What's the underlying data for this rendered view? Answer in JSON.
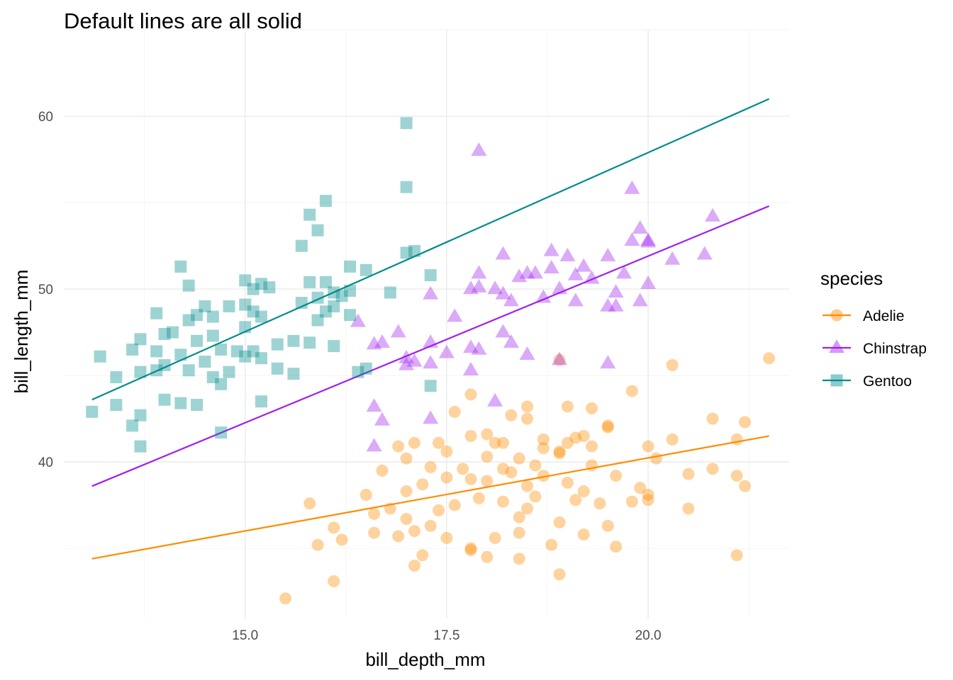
{
  "chart_data": {
    "type": "scatter",
    "title": "Default lines are all solid",
    "xlabel": "bill_depth_mm",
    "ylabel": "bill_length_mm",
    "xlim": [
      12.75,
      21.75
    ],
    "ylim": [
      30.95,
      65
    ],
    "x_ticks": [
      15.0,
      17.5,
      20.0
    ],
    "x_tick_labels": [
      "15.0",
      "17.5",
      "20.0"
    ],
    "y_ticks": [
      40,
      50,
      60
    ],
    "y_tick_labels": [
      "40",
      "50",
      "60"
    ],
    "x_minor": [
      13.75,
      16.25,
      18.75,
      21.25
    ],
    "y_minor": [
      35,
      45,
      55,
      65
    ],
    "grid": true,
    "legend": {
      "title": "species",
      "placement": "right"
    },
    "series": [
      {
        "name": "Adelie",
        "color": "#ff8c00",
        "marker": "circle",
        "trend": {
          "x": [
            13.1,
            21.5
          ],
          "y": [
            34.4,
            41.5
          ]
        },
        "points": [
          [
            15.5,
            32.1
          ],
          [
            16.1,
            33.1
          ],
          [
            17.1,
            34.0
          ],
          [
            17.2,
            34.6
          ],
          [
            17.8,
            34.9
          ],
          [
            18.0,
            34.5
          ],
          [
            18.4,
            34.4
          ],
          [
            18.9,
            33.5
          ],
          [
            21.1,
            34.6
          ],
          [
            15.9,
            35.2
          ],
          [
            16.1,
            36.2
          ],
          [
            16.2,
            35.5
          ],
          [
            16.6,
            35.9
          ],
          [
            16.9,
            35.7
          ],
          [
            17.1,
            36.0
          ],
          [
            17.3,
            36.3
          ],
          [
            17.5,
            35.6
          ],
          [
            17.8,
            35.0
          ],
          [
            18.1,
            35.6
          ],
          [
            18.4,
            35.9
          ],
          [
            18.8,
            35.2
          ],
          [
            19.2,
            35.8
          ],
          [
            19.5,
            36.3
          ],
          [
            19.6,
            35.1
          ],
          [
            15.8,
            37.6
          ],
          [
            16.6,
            37.0
          ],
          [
            16.8,
            37.3
          ],
          [
            17.0,
            36.7
          ],
          [
            17.4,
            37.2
          ],
          [
            17.6,
            37.5
          ],
          [
            17.9,
            37.9
          ],
          [
            18.2,
            37.7
          ],
          [
            18.4,
            36.8
          ],
          [
            18.5,
            37.3
          ],
          [
            18.6,
            38.0
          ],
          [
            18.9,
            36.5
          ],
          [
            19.1,
            37.8
          ],
          [
            19.4,
            37.6
          ],
          [
            19.8,
            37.7
          ],
          [
            20.0,
            38.1
          ],
          [
            20.5,
            37.3
          ],
          [
            16.5,
            38.1
          ],
          [
            17.0,
            38.3
          ],
          [
            17.2,
            38.7
          ],
          [
            17.5,
            39.1
          ],
          [
            17.8,
            39.0
          ],
          [
            18.0,
            38.9
          ],
          [
            18.3,
            39.4
          ],
          [
            18.5,
            38.6
          ],
          [
            18.7,
            39.2
          ],
          [
            19.0,
            38.8
          ],
          [
            19.2,
            38.3
          ],
          [
            19.3,
            39.8
          ],
          [
            19.6,
            39.2
          ],
          [
            19.9,
            38.5
          ],
          [
            20.0,
            37.8
          ],
          [
            16.7,
            39.5
          ],
          [
            17.0,
            40.2
          ],
          [
            17.3,
            39.7
          ],
          [
            17.5,
            40.6
          ],
          [
            17.7,
            39.6
          ],
          [
            18.0,
            40.3
          ],
          [
            18.2,
            39.6
          ],
          [
            18.4,
            40.2
          ],
          [
            18.6,
            39.8
          ],
          [
            18.9,
            40.5
          ],
          [
            19.0,
            41.1
          ],
          [
            19.3,
            40.9
          ],
          [
            20.0,
            40.9
          ],
          [
            20.1,
            40.2
          ],
          [
            20.5,
            39.3
          ],
          [
            20.8,
            39.6
          ],
          [
            21.1,
            39.2
          ],
          [
            21.2,
            38.6
          ],
          [
            16.9,
            40.9
          ],
          [
            17.1,
            41.1
          ],
          [
            17.4,
            41.1
          ],
          [
            17.6,
            42.9
          ],
          [
            17.8,
            41.5
          ],
          [
            18.1,
            41.1
          ],
          [
            18.3,
            42.7
          ],
          [
            18.5,
            42.5
          ],
          [
            18.7,
            41.3
          ],
          [
            18.9,
            40.6
          ],
          [
            19.1,
            41.4
          ],
          [
            19.3,
            43.1
          ],
          [
            19.5,
            42.1
          ],
          [
            19.8,
            44.1
          ],
          [
            20.3,
            41.3
          ],
          [
            20.8,
            42.5
          ],
          [
            21.1,
            41.3
          ],
          [
            21.2,
            42.3
          ],
          [
            17.8,
            43.9
          ],
          [
            18.0,
            41.6
          ],
          [
            18.2,
            41.1
          ],
          [
            18.5,
            43.2
          ],
          [
            18.7,
            40.8
          ],
          [
            18.9,
            45.9
          ],
          [
            19.0,
            43.2
          ],
          [
            19.2,
            41.5
          ],
          [
            19.5,
            42.0
          ],
          [
            20.3,
            45.6
          ],
          [
            21.5,
            46.0
          ]
        ]
      },
      {
        "name": "Chinstrap",
        "color": "#a020f0",
        "marker": "triangle",
        "trend": {
          "x": [
            13.1,
            21.5
          ],
          "y": [
            38.6,
            54.8
          ]
        },
        "points": [
          [
            17.9,
            58.0
          ],
          [
            19.8,
            55.8
          ],
          [
            20.8,
            54.2
          ],
          [
            19.9,
            53.5
          ],
          [
            20.0,
            52.7
          ],
          [
            20.3,
            51.7
          ],
          [
            20.7,
            52.0
          ],
          [
            18.2,
            52.0
          ],
          [
            18.8,
            52.2
          ],
          [
            19.0,
            51.9
          ],
          [
            19.2,
            51.3
          ],
          [
            19.5,
            51.9
          ],
          [
            19.8,
            52.8
          ],
          [
            20.0,
            52.8
          ],
          [
            17.9,
            50.9
          ],
          [
            18.1,
            50.0
          ],
          [
            18.5,
            50.9
          ],
          [
            18.8,
            51.2
          ],
          [
            19.1,
            50.8
          ],
          [
            19.3,
            50.6
          ],
          [
            19.7,
            50.9
          ],
          [
            20.0,
            50.3
          ],
          [
            17.9,
            50.1
          ],
          [
            18.2,
            49.7
          ],
          [
            18.7,
            49.5
          ],
          [
            18.9,
            50.0
          ],
          [
            19.1,
            49.3
          ],
          [
            19.5,
            49.0
          ],
          [
            19.6,
            49.8
          ],
          [
            19.9,
            49.3
          ],
          [
            17.3,
            49.7
          ],
          [
            18.4,
            50.7
          ],
          [
            18.6,
            50.9
          ],
          [
            18.3,
            49.3
          ],
          [
            17.8,
            50.0
          ],
          [
            19.6,
            49.0
          ],
          [
            16.4,
            48.1
          ],
          [
            17.6,
            48.4
          ],
          [
            18.2,
            47.5
          ],
          [
            16.6,
            46.8
          ],
          [
            17.0,
            46.0
          ],
          [
            17.3,
            46.9
          ],
          [
            17.5,
            46.3
          ],
          [
            17.8,
            46.6
          ],
          [
            17.9,
            46.5
          ],
          [
            18.3,
            46.9
          ],
          [
            18.5,
            46.2
          ],
          [
            18.9,
            45.9
          ],
          [
            16.9,
            47.5
          ],
          [
            16.7,
            46.9
          ],
          [
            17.0,
            45.6
          ],
          [
            17.1,
            45.8
          ],
          [
            17.3,
            45.7
          ],
          [
            17.8,
            45.3
          ],
          [
            19.5,
            45.7
          ],
          [
            16.6,
            43.2
          ],
          [
            17.3,
            42.5
          ],
          [
            18.1,
            43.5
          ],
          [
            16.7,
            42.4
          ],
          [
            16.6,
            40.9
          ]
        ]
      },
      {
        "name": "Gentoo",
        "color": "#008b8b",
        "marker": "square",
        "trend": {
          "x": [
            13.1,
            21.5
          ],
          "y": [
            43.6,
            61.0
          ]
        },
        "points": [
          [
            17.0,
            59.6
          ],
          [
            17.0,
            55.9
          ],
          [
            16.0,
            55.1
          ],
          [
            15.8,
            54.3
          ],
          [
            15.7,
            52.5
          ],
          [
            15.9,
            53.4
          ],
          [
            17.0,
            52.1
          ],
          [
            17.1,
            52.2
          ],
          [
            14.2,
            51.3
          ],
          [
            14.3,
            50.2
          ],
          [
            15.0,
            50.5
          ],
          [
            15.2,
            50.3
          ],
          [
            15.3,
            50.1
          ],
          [
            15.8,
            50.4
          ],
          [
            16.0,
            50.4
          ],
          [
            16.3,
            51.3
          ],
          [
            16.5,
            51.1
          ],
          [
            17.3,
            50.8
          ],
          [
            15.1,
            50.0
          ],
          [
            16.3,
            49.9
          ],
          [
            13.9,
            48.6
          ],
          [
            14.3,
            48.2
          ],
          [
            14.5,
            49.0
          ],
          [
            14.8,
            49.0
          ],
          [
            15.0,
            49.1
          ],
          [
            15.1,
            48.7
          ],
          [
            15.7,
            49.2
          ],
          [
            15.9,
            49.5
          ],
          [
            16.1,
            49.8
          ],
          [
            16.2,
            49.6
          ],
          [
            16.8,
            49.8
          ],
          [
            14.1,
            47.5
          ],
          [
            14.4,
            48.5
          ],
          [
            14.6,
            48.4
          ],
          [
            15.0,
            47.8
          ],
          [
            15.2,
            48.4
          ],
          [
            16.0,
            48.7
          ],
          [
            16.3,
            48.5
          ],
          [
            15.9,
            48.2
          ],
          [
            16.1,
            49.0
          ],
          [
            13.2,
            46.1
          ],
          [
            13.6,
            46.5
          ],
          [
            13.9,
            46.4
          ],
          [
            14.0,
            47.4
          ],
          [
            14.2,
            46.2
          ],
          [
            14.4,
            47.0
          ],
          [
            14.7,
            46.5
          ],
          [
            14.9,
            46.4
          ],
          [
            15.1,
            46.4
          ],
          [
            15.2,
            46.0
          ],
          [
            15.4,
            46.8
          ],
          [
            15.6,
            47.0
          ],
          [
            15.8,
            46.9
          ],
          [
            16.1,
            46.7
          ],
          [
            16.5,
            45.4
          ],
          [
            16.4,
            45.2
          ],
          [
            14.6,
            47.3
          ],
          [
            13.7,
            47.1
          ],
          [
            15.0,
            46.1
          ],
          [
            13.4,
            44.9
          ],
          [
            13.7,
            45.2
          ],
          [
            13.9,
            45.3
          ],
          [
            14.0,
            45.6
          ],
          [
            14.3,
            45.3
          ],
          [
            14.5,
            45.8
          ],
          [
            14.6,
            44.9
          ],
          [
            14.7,
            44.5
          ],
          [
            14.8,
            45.2
          ],
          [
            15.4,
            45.4
          ],
          [
            15.6,
            45.1
          ],
          [
            17.3,
            44.4
          ],
          [
            13.1,
            42.9
          ],
          [
            13.4,
            43.3
          ],
          [
            13.6,
            42.1
          ],
          [
            13.7,
            42.7
          ],
          [
            14.0,
            43.6
          ],
          [
            14.2,
            43.4
          ],
          [
            14.4,
            43.3
          ],
          [
            14.7,
            41.7
          ],
          [
            13.7,
            40.9
          ],
          [
            15.2,
            43.5
          ]
        ]
      }
    ]
  }
}
